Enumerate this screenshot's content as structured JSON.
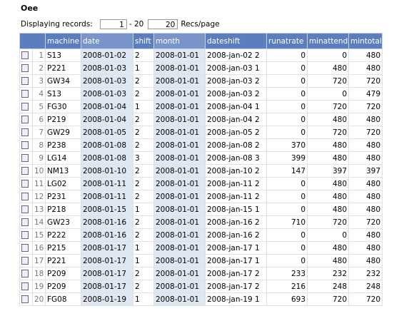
{
  "header": {
    "title": "Oee"
  },
  "pager": {
    "label": "Displaying records:",
    "from": "1",
    "to": "- 20",
    "per_page": "20",
    "per_page_label": "Recs/page"
  },
  "table": {
    "columns": [
      "machine",
      "date",
      "shift",
      "month",
      "dateshift",
      "runatrate",
      "minattend",
      "mintotal"
    ],
    "rows": [
      [
        1,
        "S13",
        "2008-01-02",
        2,
        "2008-01-01",
        "2008-jan-02 2",
        0,
        0,
        480
      ],
      [
        2,
        "P221",
        "2008-01-03",
        1,
        "2008-01-01",
        "2008-jan-03 1",
        0,
        480,
        480
      ],
      [
        3,
        "GW34",
        "2008-01-03",
        2,
        "2008-01-01",
        "2008-jan-03 2",
        0,
        720,
        720
      ],
      [
        4,
        "S13",
        "2008-01-03",
        2,
        "2008-01-01",
        "2008-jan-03 2",
        0,
        0,
        479
      ],
      [
        5,
        "FG30",
        "2008-01-04",
        1,
        "2008-01-01",
        "2008-jan-04 1",
        0,
        720,
        720
      ],
      [
        6,
        "P219",
        "2008-01-04",
        2,
        "2008-01-01",
        "2008-jan-04 2",
        0,
        480,
        480
      ],
      [
        7,
        "GW29",
        "2008-01-05",
        2,
        "2008-01-01",
        "2008-jan-05 2",
        0,
        720,
        720
      ],
      [
        8,
        "P238",
        "2008-01-08",
        2,
        "2008-01-01",
        "2008-jan-08 2",
        370,
        480,
        480
      ],
      [
        9,
        "LG14",
        "2008-01-08",
        3,
        "2008-01-01",
        "2008-jan-08 3",
        399,
        480,
        480
      ],
      [
        10,
        "NM13",
        "2008-01-10",
        2,
        "2008-01-01",
        "2008-jan-10 2",
        147,
        397,
        397
      ],
      [
        11,
        "LG02",
        "2008-01-11",
        2,
        "2008-01-01",
        "2008-jan-11 2",
        0,
        480,
        480
      ],
      [
        12,
        "P231",
        "2008-01-11",
        2,
        "2008-01-01",
        "2008-jan-11 2",
        0,
        480,
        480
      ],
      [
        13,
        "P218",
        "2008-01-15",
        1,
        "2008-01-01",
        "2008-jan-15 1",
        0,
        480,
        480
      ],
      [
        14,
        "GW23",
        "2008-01-16",
        2,
        "2008-01-01",
        "2008-jan-16 2",
        710,
        720,
        720
      ],
      [
        15,
        "P222",
        "2008-01-16",
        2,
        "2008-01-01",
        "2008-jan-16 2",
        0,
        0,
        480
      ],
      [
        16,
        "P215",
        "2008-01-17",
        1,
        "2008-01-01",
        "2008-jan-17 1",
        0,
        480,
        480
      ],
      [
        17,
        "P221",
        "2008-01-17",
        1,
        "2008-01-01",
        "2008-jan-17 1",
        0,
        480,
        480
      ],
      [
        18,
        "P209",
        "2008-01-17",
        2,
        "2008-01-01",
        "2008-jan-17 2",
        233,
        232,
        232
      ],
      [
        19,
        "P209",
        "2008-01-17",
        2,
        "2008-01-01",
        "2008-jan-17 2",
        216,
        248,
        248
      ],
      [
        20,
        "FG08",
        "2008-01-19",
        1,
        "2008-01-01",
        "2008-jan-19 1",
        693,
        720,
        720
      ]
    ]
  }
}
